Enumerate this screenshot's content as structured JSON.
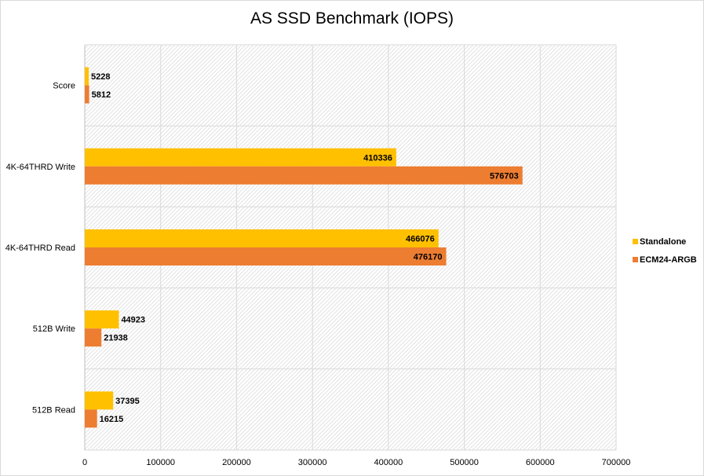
{
  "chart_data": {
    "type": "bar",
    "orientation": "horizontal",
    "title": "AS SSD Benchmark (IOPS)",
    "xlabel": "",
    "ylabel": "",
    "categories": [
      "Score",
      "4K-64THRD Write",
      "4K-64THRD Read",
      "512B Write",
      "512B Read"
    ],
    "series": [
      {
        "name": "Standalone",
        "color": "#ffc000",
        "values": [
          5228,
          410336,
          466076,
          44923,
          37395
        ]
      },
      {
        "name": "ECM24-ARGB",
        "color": "#ed7d31",
        "values": [
          5812,
          576703,
          476170,
          21938,
          16215
        ]
      }
    ],
    "xlim": [
      0,
      700000
    ],
    "xticks": [
      0,
      100000,
      200000,
      300000,
      400000,
      500000,
      600000,
      700000
    ],
    "grid": true,
    "legend_position": "right"
  }
}
